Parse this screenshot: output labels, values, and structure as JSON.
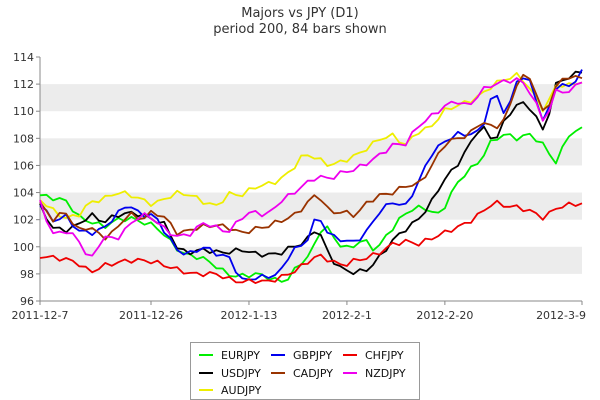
{
  "chart_data": {
    "type": "line",
    "title": "Majors vs JPY (D1)",
    "subtitle": "period 200, 84 bars shown",
    "ylim": [
      96,
      114
    ],
    "y_ticks": [
      96,
      98,
      100,
      102,
      104,
      106,
      108,
      110,
      112,
      114
    ],
    "x_tick_labels": [
      "2011-12-7",
      "2011-12-26",
      "2012-1-13",
      "2012-2-1",
      "2012-2-20",
      "2012-3-9"
    ],
    "x_tick_index": [
      0,
      17,
      32,
      47,
      62,
      83
    ],
    "bars": 84,
    "grid": "horizontal bands",
    "legend_position": "bottom",
    "series": [
      {
        "name": "EURJPY",
        "color": "#00ee00",
        "anchors": [
          [
            0,
            103.8
          ],
          [
            2,
            103.6
          ],
          [
            4,
            103.4
          ],
          [
            6,
            102.2
          ],
          [
            8,
            101.8
          ],
          [
            10,
            101.5
          ],
          [
            12,
            102.0
          ],
          [
            14,
            102.1
          ],
          [
            16,
            101.8
          ],
          [
            18,
            101.5
          ],
          [
            20,
            100.5
          ],
          [
            22,
            99.5
          ],
          [
            24,
            99.3
          ],
          [
            26,
            99.0
          ],
          [
            28,
            98.3
          ],
          [
            30,
            97.8
          ],
          [
            32,
            97.9
          ],
          [
            34,
            98.0
          ],
          [
            36,
            97.6
          ],
          [
            38,
            97.4
          ],
          [
            40,
            98.6
          ],
          [
            42,
            99.5
          ],
          [
            44,
            101.8
          ],
          [
            46,
            100.3
          ],
          [
            48,
            99.8
          ],
          [
            50,
            100.6
          ],
          [
            52,
            99.7
          ],
          [
            54,
            101.0
          ],
          [
            56,
            102.2
          ],
          [
            58,
            102.9
          ],
          [
            60,
            102.8
          ],
          [
            62,
            102.3
          ],
          [
            64,
            104.2
          ],
          [
            66,
            105.5
          ],
          [
            68,
            106.2
          ],
          [
            70,
            107.8
          ],
          [
            72,
            108.3
          ],
          [
            74,
            108.0
          ],
          [
            76,
            108.3
          ],
          [
            78,
            107.5
          ],
          [
            80,
            106.2
          ],
          [
            82,
            108.3
          ],
          [
            84,
            108.7
          ]
        ]
      },
      {
        "name": "USDJPY",
        "color": "#000000",
        "anchors": [
          [
            0,
            103.0
          ],
          [
            2,
            101.4
          ],
          [
            4,
            101.2
          ],
          [
            6,
            101.6
          ],
          [
            8,
            102.4
          ],
          [
            10,
            101.8
          ],
          [
            12,
            102.3
          ],
          [
            14,
            102.5
          ],
          [
            16,
            102.4
          ],
          [
            18,
            102.0
          ],
          [
            20,
            101.6
          ],
          [
            22,
            99.7
          ],
          [
            24,
            99.6
          ],
          [
            26,
            99.8
          ],
          [
            28,
            99.6
          ],
          [
            30,
            99.6
          ],
          [
            32,
            99.8
          ],
          [
            34,
            99.5
          ],
          [
            36,
            99.4
          ],
          [
            38,
            99.5
          ],
          [
            40,
            100.0
          ],
          [
            42,
            100.3
          ],
          [
            44,
            101.5
          ],
          [
            46,
            99.2
          ],
          [
            48,
            98.3
          ],
          [
            50,
            98.1
          ],
          [
            52,
            98.3
          ],
          [
            54,
            99.3
          ],
          [
            56,
            100.5
          ],
          [
            58,
            101.3
          ],
          [
            60,
            102.0
          ],
          [
            62,
            103.2
          ],
          [
            64,
            104.9
          ],
          [
            66,
            105.9
          ],
          [
            68,
            107.4
          ],
          [
            70,
            109.0
          ],
          [
            72,
            107.7
          ],
          [
            74,
            109.5
          ],
          [
            76,
            110.7
          ],
          [
            78,
            110.2
          ],
          [
            80,
            108.4
          ],
          [
            82,
            112.2
          ],
          [
            84,
            112.5
          ],
          [
            86,
            113.0
          ]
        ]
      },
      {
        "name": "AUDJPY",
        "color": "#eeee00",
        "anchors": [
          [
            0,
            103.5
          ],
          [
            2,
            102.7
          ],
          [
            4,
            102.1
          ],
          [
            6,
            102.3
          ],
          [
            8,
            103.3
          ],
          [
            10,
            103.5
          ],
          [
            12,
            104.0
          ],
          [
            14,
            103.9
          ],
          [
            16,
            103.5
          ],
          [
            18,
            103.1
          ],
          [
            20,
            103.6
          ],
          [
            22,
            104.0
          ],
          [
            24,
            103.8
          ],
          [
            26,
            103.3
          ],
          [
            28,
            103.0
          ],
          [
            30,
            103.9
          ],
          [
            32,
            103.8
          ],
          [
            34,
            104.4
          ],
          [
            36,
            104.6
          ],
          [
            38,
            104.9
          ],
          [
            40,
            105.7
          ],
          [
            42,
            106.9
          ],
          [
            44,
            106.5
          ],
          [
            46,
            106.0
          ],
          [
            48,
            106.3
          ],
          [
            50,
            106.7
          ],
          [
            52,
            107.3
          ],
          [
            54,
            108.0
          ],
          [
            56,
            108.2
          ],
          [
            58,
            107.5
          ],
          [
            60,
            108.5
          ],
          [
            62,
            108.8
          ],
          [
            64,
            110.0
          ],
          [
            66,
            110.4
          ],
          [
            68,
            110.7
          ],
          [
            70,
            111.2
          ],
          [
            72,
            112.0
          ],
          [
            74,
            112.4
          ],
          [
            76,
            112.7
          ],
          [
            78,
            111.5
          ],
          [
            80,
            110.0
          ],
          [
            82,
            112.0
          ],
          [
            84,
            111.9
          ],
          [
            86,
            112.2
          ]
        ]
      },
      {
        "name": "GBPJPY",
        "color": "#0000ee",
        "anchors": [
          [
            0,
            103.2
          ],
          [
            2,
            101.9
          ],
          [
            4,
            102.3
          ],
          [
            6,
            101.2
          ],
          [
            8,
            101.0
          ],
          [
            10,
            101.3
          ],
          [
            12,
            102.3
          ],
          [
            14,
            103.2
          ],
          [
            16,
            102.3
          ],
          [
            18,
            102.4
          ],
          [
            20,
            101.0
          ],
          [
            22,
            99.6
          ],
          [
            24,
            99.5
          ],
          [
            26,
            100.0
          ],
          [
            28,
            99.5
          ],
          [
            30,
            99.2
          ],
          [
            32,
            97.5
          ],
          [
            34,
            97.7
          ],
          [
            36,
            97.8
          ],
          [
            38,
            98.0
          ],
          [
            40,
            99.8
          ],
          [
            42,
            100.1
          ],
          [
            44,
            102.4
          ],
          [
            46,
            100.8
          ],
          [
            48,
            100.5
          ],
          [
            50,
            100.3
          ],
          [
            52,
            101.2
          ],
          [
            54,
            102.7
          ],
          [
            56,
            103.3
          ],
          [
            58,
            103.0
          ],
          [
            60,
            104.7
          ],
          [
            62,
            106.8
          ],
          [
            64,
            107.7
          ],
          [
            66,
            108.3
          ],
          [
            68,
            108.3
          ],
          [
            70,
            108.5
          ],
          [
            72,
            111.6
          ],
          [
            74,
            109.6
          ],
          [
            76,
            112.8
          ],
          [
            78,
            112.0
          ],
          [
            80,
            109.0
          ],
          [
            82,
            112.0
          ],
          [
            84,
            111.8
          ],
          [
            86,
            112.9
          ]
        ]
      },
      {
        "name": "CADJPY",
        "color": "#993300",
        "anchors": [
          [
            0,
            103.2
          ],
          [
            2,
            102.0
          ],
          [
            4,
            102.6
          ],
          [
            6,
            101.2
          ],
          [
            8,
            101.5
          ],
          [
            10,
            100.6
          ],
          [
            12,
            101.2
          ],
          [
            14,
            102.5
          ],
          [
            16,
            102.0
          ],
          [
            18,
            102.6
          ],
          [
            20,
            102.1
          ],
          [
            22,
            100.9
          ],
          [
            24,
            101.3
          ],
          [
            26,
            101.5
          ],
          [
            28,
            101.6
          ],
          [
            30,
            101.4
          ],
          [
            32,
            101.0
          ],
          [
            34,
            101.3
          ],
          [
            36,
            101.5
          ],
          [
            38,
            101.9
          ],
          [
            40,
            102.2
          ],
          [
            42,
            103.0
          ],
          [
            44,
            104.0
          ],
          [
            46,
            102.5
          ],
          [
            48,
            102.6
          ],
          [
            50,
            102.3
          ],
          [
            52,
            103.3
          ],
          [
            54,
            103.8
          ],
          [
            56,
            104.0
          ],
          [
            58,
            104.5
          ],
          [
            60,
            104.6
          ],
          [
            62,
            105.8
          ],
          [
            64,
            107.5
          ],
          [
            66,
            108.0
          ],
          [
            68,
            108.2
          ],
          [
            70,
            109.3
          ],
          [
            72,
            108.7
          ],
          [
            74,
            109.5
          ],
          [
            76,
            112.6
          ],
          [
            78,
            112.4
          ],
          [
            80,
            109.6
          ],
          [
            82,
            112.0
          ],
          [
            84,
            112.6
          ],
          [
            86,
            112.4
          ]
        ]
      },
      {
        "name": "NZDJPY",
        "color": "#ee00ee",
        "anchors": [
          [
            0,
            103.3
          ],
          [
            2,
            100.9
          ],
          [
            4,
            101.2
          ],
          [
            6,
            100.6
          ],
          [
            8,
            98.9
          ],
          [
            10,
            100.8
          ],
          [
            12,
            100.5
          ],
          [
            14,
            101.5
          ],
          [
            16,
            102.4
          ],
          [
            18,
            102.1
          ],
          [
            20,
            101.2
          ],
          [
            22,
            100.7
          ],
          [
            24,
            101.0
          ],
          [
            26,
            101.8
          ],
          [
            28,
            101.4
          ],
          [
            30,
            101.1
          ],
          [
            32,
            102.2
          ],
          [
            34,
            102.6
          ],
          [
            36,
            102.3
          ],
          [
            38,
            103.3
          ],
          [
            40,
            103.9
          ],
          [
            42,
            104.6
          ],
          [
            44,
            105.2
          ],
          [
            46,
            105.0
          ],
          [
            48,
            105.5
          ],
          [
            50,
            105.7
          ],
          [
            52,
            106.2
          ],
          [
            54,
            106.8
          ],
          [
            56,
            107.5
          ],
          [
            58,
            107.6
          ],
          [
            60,
            108.9
          ],
          [
            62,
            109.6
          ],
          [
            64,
            110.3
          ],
          [
            66,
            110.8
          ],
          [
            68,
            110.3
          ],
          [
            70,
            111.5
          ],
          [
            72,
            112.0
          ],
          [
            74,
            112.2
          ],
          [
            76,
            112.4
          ],
          [
            78,
            111.3
          ],
          [
            80,
            109.1
          ],
          [
            82,
            111.6
          ],
          [
            84,
            111.4
          ],
          [
            86,
            112.3
          ]
        ]
      },
      {
        "name": "CHFJPY",
        "color": "#ee0000",
        "anchors": [
          [
            0,
            99.3
          ],
          [
            2,
            99.2
          ],
          [
            4,
            99.1
          ],
          [
            6,
            98.8
          ],
          [
            8,
            98.1
          ],
          [
            10,
            98.6
          ],
          [
            12,
            98.8
          ],
          [
            14,
            99.0
          ],
          [
            16,
            99.0
          ],
          [
            18,
            98.9
          ],
          [
            20,
            98.6
          ],
          [
            22,
            98.3
          ],
          [
            24,
            98.0
          ],
          [
            26,
            98.0
          ],
          [
            28,
            98.0
          ],
          [
            30,
            97.6
          ],
          [
            32,
            97.4
          ],
          [
            34,
            97.5
          ],
          [
            36,
            97.4
          ],
          [
            38,
            97.7
          ],
          [
            40,
            98.1
          ],
          [
            42,
            98.7
          ],
          [
            44,
            99.4
          ],
          [
            46,
            99.0
          ],
          [
            48,
            98.6
          ],
          [
            50,
            99.0
          ],
          [
            52,
            99.2
          ],
          [
            54,
            99.6
          ],
          [
            56,
            100.2
          ],
          [
            58,
            100.4
          ],
          [
            60,
            100.2
          ],
          [
            62,
            100.6
          ],
          [
            64,
            101.0
          ],
          [
            66,
            101.4
          ],
          [
            68,
            101.8
          ],
          [
            70,
            102.5
          ],
          [
            72,
            103.3
          ],
          [
            74,
            103.0
          ],
          [
            76,
            102.9
          ],
          [
            78,
            102.6
          ],
          [
            80,
            102.1
          ],
          [
            82,
            102.9
          ],
          [
            84,
            103.1
          ],
          [
            86,
            103.2
          ]
        ]
      }
    ],
    "legend_rows": [
      [
        "EURJPY",
        "GBPJPY",
        "CHFJPY"
      ],
      [
        "USDJPY",
        "CADJPY",
        "NZDJPY"
      ],
      [
        "AUDJPY"
      ]
    ]
  }
}
